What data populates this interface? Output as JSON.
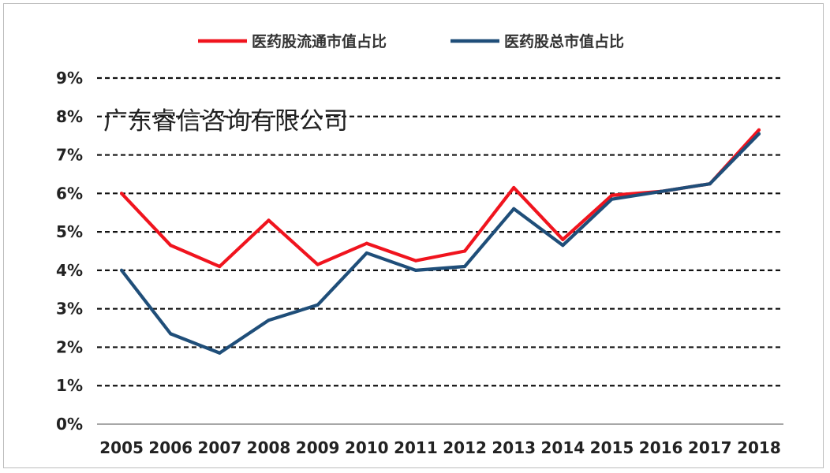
{
  "watermark": "广东睿信咨询有限公司",
  "chart_data": {
    "type": "line",
    "categories": [
      "2005",
      "2006",
      "2007",
      "2008",
      "2009",
      "2010",
      "2011",
      "2012",
      "2013",
      "2014",
      "2015",
      "2016",
      "2017",
      "2018"
    ],
    "ylim": [
      0,
      9
    ],
    "ytick_labels": [
      "0%",
      "1%",
      "2%",
      "3%",
      "4%",
      "5%",
      "6%",
      "7%",
      "8%",
      "9%"
    ],
    "grid": true,
    "legend_position": "top",
    "series": [
      {
        "name": "医药股流通市值占比",
        "color": "#f0141e",
        "values": [
          6.0,
          4.65,
          4.1,
          5.3,
          4.15,
          4.7,
          4.25,
          4.5,
          6.15,
          4.8,
          5.95,
          6.05,
          6.25,
          7.65
        ]
      },
      {
        "name": "医药股总市值占比",
        "color": "#1f4e79",
        "values": [
          4.0,
          2.35,
          1.85,
          2.7,
          3.1,
          4.45,
          4.0,
          4.1,
          5.6,
          4.65,
          5.85,
          6.05,
          6.25,
          7.55
        ]
      }
    ]
  }
}
